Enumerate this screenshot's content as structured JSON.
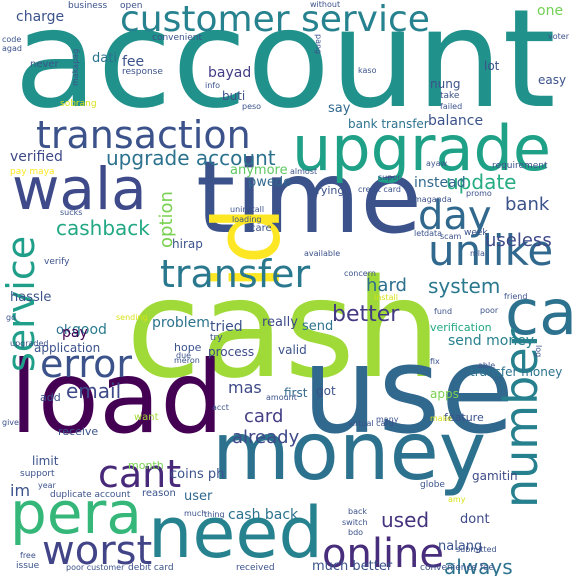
{
  "words": [
    {
      "text": "account",
      "color": "#21918c"
    },
    {
      "text": "cash",
      "color": "#a0da39"
    },
    {
      "text": "use",
      "color": "#31688e"
    },
    {
      "text": "money",
      "color": "#2c728e"
    },
    {
      "text": "load",
      "color": "#440154"
    },
    {
      "text": "time",
      "color": "#3b528b"
    },
    {
      "text": "upgrade",
      "color": "#1fa187"
    },
    {
      "text": "need",
      "color": "#26828e"
    },
    {
      "text": "id",
      "color": "#fde725"
    },
    {
      "text": "wala",
      "color": "#3e4a89"
    },
    {
      "text": "pera",
      "color": "#35b779"
    },
    {
      "text": "transaction",
      "color": "#3b528b"
    },
    {
      "text": "customer service",
      "color": "#26828e"
    },
    {
      "text": "transfer",
      "color": "#2a788e"
    },
    {
      "text": "ca",
      "color": "#2c728e"
    },
    {
      "text": "unlike",
      "color": "#31688e"
    },
    {
      "text": "number",
      "color": "#27808e"
    },
    {
      "text": "service",
      "color": "#1f9e89"
    },
    {
      "text": "online",
      "color": "#472d7b"
    },
    {
      "text": "worst",
      "color": "#414487"
    },
    {
      "text": "cant",
      "color": "#482878"
    },
    {
      "text": "error",
      "color": "#3b528b"
    },
    {
      "text": "day",
      "color": "#31688e"
    },
    {
      "text": "upgrade account",
      "color": "#2c728e"
    },
    {
      "text": "cashback",
      "color": "#22a884"
    },
    {
      "text": "system",
      "color": "#2a788e"
    },
    {
      "text": "update",
      "color": "#25ac82"
    },
    {
      "text": "better",
      "color": "#443a83"
    },
    {
      "text": "email",
      "color": "#3e4a89"
    },
    {
      "text": "always",
      "color": "#2c728e"
    },
    {
      "text": "used",
      "color": "#46337e"
    },
    {
      "text": "charge",
      "color": "#3b528b"
    },
    {
      "text": "one",
      "color": "#73d056"
    },
    {
      "text": "verified",
      "color": "#3e4a89"
    },
    {
      "text": "option",
      "color": "#7ad151"
    },
    {
      "text": "bank",
      "color": "#3b528b"
    },
    {
      "text": "useless",
      "color": "#3e4a89"
    },
    {
      "text": "instead",
      "color": "#31688e"
    },
    {
      "text": "hard",
      "color": "#2d708e"
    },
    {
      "text": "card",
      "color": "#433e85"
    },
    {
      "text": "already",
      "color": "#3e4a89"
    },
    {
      "text": "problem",
      "color": "#2c728e"
    },
    {
      "text": "mas",
      "color": "#3e4a89"
    },
    {
      "text": "cash back",
      "color": "#2c728e"
    },
    {
      "text": "good",
      "color": "#287c8e"
    },
    {
      "text": "ok",
      "color": "#2c728e"
    },
    {
      "text": "pay",
      "color": "#440154"
    },
    {
      "text": "im",
      "color": "#3b528b"
    },
    {
      "text": "tried",
      "color": "#3b528b"
    },
    {
      "text": "send money",
      "color": "#27808e"
    },
    {
      "text": "balance",
      "color": "#3b528b"
    },
    {
      "text": "bank transfer",
      "color": "#2c728e"
    },
    {
      "text": "bayad",
      "color": "#433e85"
    },
    {
      "text": "fee",
      "color": "#3b528b"
    },
    {
      "text": "dati",
      "color": "#2c728e"
    },
    {
      "text": "anymore",
      "color": "#5ec962"
    },
    {
      "text": "pwede",
      "color": "#31688e"
    },
    {
      "text": "really",
      "color": "#3e4a89"
    },
    {
      "text": "send",
      "color": "#2c728e"
    },
    {
      "text": "nalang",
      "color": "#3b528b"
    },
    {
      "text": "much better",
      "color": "#3b528b"
    },
    {
      "text": "user",
      "color": "#31688e"
    },
    {
      "text": "dont",
      "color": "#3e4a89"
    },
    {
      "text": "hassle",
      "color": "#3b528b"
    },
    {
      "text": "limit",
      "color": "#3b528b"
    },
    {
      "text": "application",
      "color": "#3b528b"
    },
    {
      "text": "apps",
      "color": "#7ad151"
    },
    {
      "text": "verification",
      "color": "#22a884"
    },
    {
      "text": "transfer money",
      "color": "#2c728e"
    },
    {
      "text": "gamitin",
      "color": "#3e4a89"
    },
    {
      "text": "coins ph",
      "color": "#3b528b"
    },
    {
      "text": "month",
      "color": "#7ad151"
    },
    {
      "text": "first",
      "color": "#31688e"
    },
    {
      "text": "got",
      "color": "#3b528b"
    },
    {
      "text": "valid",
      "color": "#3b528b"
    },
    {
      "text": "process",
      "color": "#3e4a89"
    },
    {
      "text": "hope",
      "color": "#3b528b"
    },
    {
      "text": "hirap",
      "color": "#3b528b"
    },
    {
      "text": "buti",
      "color": "#3b528b"
    },
    {
      "text": "say",
      "color": "#31688e"
    },
    {
      "text": "lot",
      "color": "#3b528b"
    },
    {
      "text": "easy",
      "color": "#3b528b"
    },
    {
      "text": "nung",
      "color": "#3b528b"
    },
    {
      "text": "take",
      "color": "#3b528b"
    },
    {
      "text": "receive",
      "color": "#3b528b"
    },
    {
      "text": "want",
      "color": "#a5db36"
    },
    {
      "text": "add",
      "color": "#3b528b"
    },
    {
      "text": "feature",
      "color": "#3b528b"
    },
    {
      "text": "reason",
      "color": "#3b528b"
    },
    {
      "text": "business",
      "color": "#3b528b"
    },
    {
      "text": "open",
      "color": "#3b528b"
    },
    {
      "text": "without",
      "color": "#3b528b"
    },
    {
      "text": "convenient",
      "color": "#3b528b"
    },
    {
      "text": "response",
      "color": "#3b528b"
    },
    {
      "text": "never",
      "color": "#3b528b"
    },
    {
      "text": "makapag",
      "color": "#3b528b"
    },
    {
      "text": "code",
      "color": "#3b528b"
    },
    {
      "text": "agad",
      "color": "#3b528b"
    },
    {
      "text": "voter",
      "color": "#3b528b"
    },
    {
      "text": "pang",
      "color": "#3b528b"
    },
    {
      "text": "kaso",
      "color": "#3b528b"
    },
    {
      "text": "info",
      "color": "#3b528b"
    },
    {
      "text": "peso",
      "color": "#3b528b"
    },
    {
      "text": "failed",
      "color": "#3b528b"
    },
    {
      "text": "requirement",
      "color": "#3b528b"
    },
    {
      "text": "sobrang",
      "color": "#d8e219"
    },
    {
      "text": "pay maya",
      "color": "#fde725"
    },
    {
      "text": "super",
      "color": "#3b528b"
    },
    {
      "text": "almost",
      "color": "#3b528b"
    },
    {
      "text": "trying",
      "color": "#3b528b"
    },
    {
      "text": "credit card",
      "color": "#3b528b"
    },
    {
      "text": "promo",
      "color": "#3b528b"
    },
    {
      "text": "ayaw",
      "color": "#3b528b"
    },
    {
      "text": "maganda",
      "color": "#3b528b"
    },
    {
      "text": "uninstall",
      "color": "#3b528b"
    },
    {
      "text": "loading",
      "color": "#3b528b"
    },
    {
      "text": "care",
      "color": "#3b528b"
    },
    {
      "text": "sucks",
      "color": "#3b528b"
    },
    {
      "text": "available",
      "color": "#3b528b"
    },
    {
      "text": "data",
      "color": "#3b528b"
    },
    {
      "text": "let",
      "color": "#3b528b"
    },
    {
      "text": "mla",
      "color": "#3b528b"
    },
    {
      "text": "week",
      "color": "#3b528b"
    },
    {
      "text": "scam",
      "color": "#3b528b"
    },
    {
      "text": "verify",
      "color": "#3b528b"
    },
    {
      "text": "concern",
      "color": "#3b528b"
    },
    {
      "text": "go",
      "color": "#3b528b"
    },
    {
      "text": "sending",
      "color": "#d8e219"
    },
    {
      "text": "install",
      "color": "#d8e219"
    },
    {
      "text": "friend",
      "color": "#3b528b"
    },
    {
      "text": "fund",
      "color": "#3b528b"
    },
    {
      "text": "upgraded",
      "color": "#3b528b"
    },
    {
      "text": "meron",
      "color": "#3b528b"
    },
    {
      "text": "due",
      "color": "#3b528b"
    },
    {
      "text": "poor",
      "color": "#3b528b"
    },
    {
      "text": "log",
      "color": "#3b528b"
    },
    {
      "text": "try",
      "color": "#3b528b"
    },
    {
      "text": "fix",
      "color": "#3b528b"
    },
    {
      "text": "able",
      "color": "#3b528b"
    },
    {
      "text": "acct",
      "color": "#3b528b"
    },
    {
      "text": "amount",
      "color": "#3b528b"
    },
    {
      "text": "many",
      "color": "#3b528b"
    },
    {
      "text": "make",
      "color": "#d8e219"
    },
    {
      "text": "give",
      "color": "#3b528b"
    },
    {
      "text": "virtual card",
      "color": "#3b528b"
    },
    {
      "text": "support",
      "color": "#3b528b"
    },
    {
      "text": "year",
      "color": "#3b528b"
    },
    {
      "text": "duplicate account",
      "color": "#3b528b"
    },
    {
      "text": "globe",
      "color": "#3b528b"
    },
    {
      "text": "amy",
      "color": "#d8e219"
    },
    {
      "text": "much",
      "color": "#3b528b"
    },
    {
      "text": "thing",
      "color": "#3b528b"
    },
    {
      "text": "back",
      "color": "#3b528b"
    },
    {
      "text": "switch",
      "color": "#3b528b"
    },
    {
      "text": "bdo",
      "color": "#3b528b"
    },
    {
      "text": "submitted",
      "color": "#3b528b"
    },
    {
      "text": "free",
      "color": "#3b528b"
    },
    {
      "text": "issue",
      "color": "#3b528b"
    },
    {
      "text": "poor customer",
      "color": "#3b528b"
    },
    {
      "text": "debit card",
      "color": "#3b528b"
    },
    {
      "text": "received",
      "color": "#3b528b"
    },
    {
      "text": "convenience fee",
      "color": "#3b528b"
    }
  ]
}
